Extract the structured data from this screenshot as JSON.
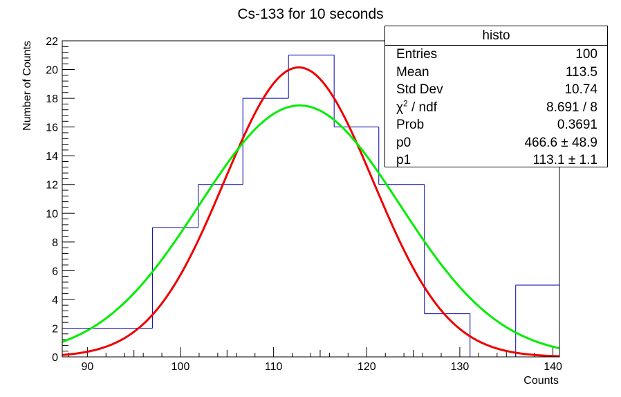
{
  "chart_data": {
    "type": "histogram",
    "title": "Cs-133 for 10 seconds",
    "xlabel": "Counts",
    "ylabel": "Number of Counts",
    "xlim": [
      87.3,
      140.7
    ],
    "ylim": [
      0,
      22
    ],
    "x_ticks": [
      90,
      100,
      110,
      120,
      130,
      140
    ],
    "y_ticks": [
      0,
      2,
      4,
      6,
      8,
      10,
      12,
      14,
      16,
      18,
      20,
      22
    ],
    "bins": [
      {
        "low": 87.3,
        "high": 97.0,
        "count": 2
      },
      {
        "low": 97.0,
        "high": 101.9,
        "count": 9
      },
      {
        "low": 101.9,
        "high": 106.7,
        "count": 12
      },
      {
        "low": 106.7,
        "high": 111.6,
        "count": 18
      },
      {
        "low": 111.6,
        "high": 116.5,
        "count": 21
      },
      {
        "low": 116.5,
        "high": 121.3,
        "count": 16
      },
      {
        "low": 121.3,
        "high": 126.2,
        "count": 12
      },
      {
        "low": 126.2,
        "high": 131.1,
        "count": 3
      },
      {
        "low": 131.1,
        "high": 136.0,
        "count": 0
      },
      {
        "low": 136.0,
        "high": 140.7,
        "count": 5
      }
    ],
    "series": [
      {
        "color": "#0000aa",
        "kind": "histogram"
      },
      {
        "color": "#ee0000",
        "kind": "gaussian",
        "amplitude": 20.15,
        "mean": 112.7,
        "sigma": 8.0
      },
      {
        "color": "#00ee00",
        "kind": "gaussian",
        "amplitude": 17.5,
        "mean": 112.8,
        "sigma": 10.74
      }
    ]
  },
  "stats_box": {
    "title": "histo",
    "entries_label": "Entries",
    "entries_value": "100",
    "mean_label": "Mean",
    "mean_value": "113.5",
    "stddev_label": "Std Dev",
    "stddev_value": "10.74",
    "chi2_symbol": "χ",
    "chi2_sup": "2",
    "chi2_rest": " / ndf",
    "chi2_value": "8.691 / 8",
    "prob_label": "Prob",
    "prob_value": "0.3691",
    "p0_label": "p0",
    "p0_value": "466.6 ± 48.9",
    "p1_label": "p1",
    "p1_value": "113.1 ± 1.1"
  }
}
